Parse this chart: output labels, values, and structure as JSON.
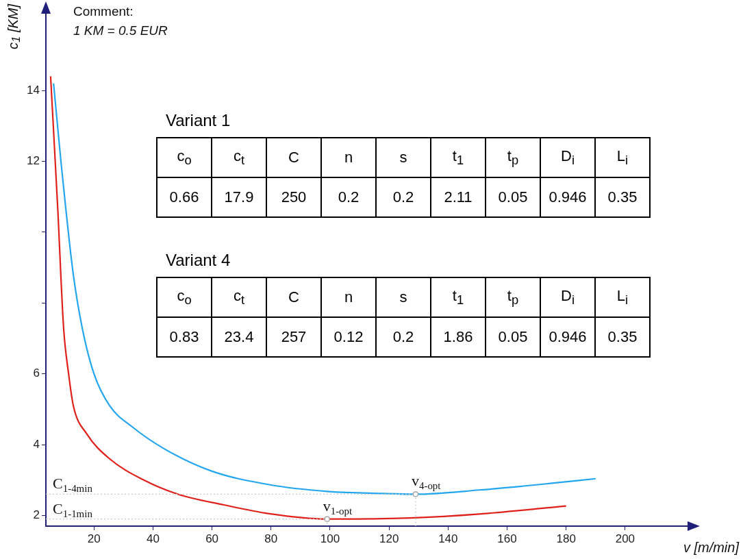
{
  "chart_data": [
    {
      "type": "line",
      "xlabel": "v [m/min]",
      "ylabel": "c$_{1}$ [KM]",
      "annotations": [
        "Comment:",
        "1 KM = 0.5 EUR",
        {
          "text": "v$_{4-opt}$",
          "x": 129,
          "y": 2.6
        },
        {
          "text": "v$_{1-opt}$",
          "x": 99,
          "y": 1.9
        }
      ],
      "series": [
        {
          "color": "#22a6f0",
          "x": [
            6.3,
            8.8,
            10.4,
            13,
            16,
            20,
            25.3,
            33,
            44.5,
            60,
            79.4,
            99,
            118,
            129,
            150.6,
            174,
            190
          ],
          "values": [
            14.2,
            12,
            10.7,
            8.8,
            7.3,
            6.0,
            5.1,
            4.5,
            3.85,
            3.25,
            2.87,
            2.68,
            2.62,
            2.6,
            2.72,
            2.9,
            3.04
          ]
        },
        {
          "color": "#e0201b",
          "x": [
            5.3,
            7.7,
            9.7,
            11.4,
            13,
            17.6,
            25.3,
            36.9,
            48.5,
            64,
            79.4,
            99,
            127,
            150.6,
            180
          ],
          "values": [
            14.4,
            10.7,
            7.3,
            6.0,
            5.1,
            4.3,
            3.6,
            3.0,
            2.6,
            2.3,
            2.05,
            1.9,
            1.93,
            2.04,
            2.27
          ]
        }
      ],
      "ref_lines": [
        {
          "axis": "y",
          "value": 2.6,
          "label": "C$_{1-4min}$",
          "line_style": "dotted",
          "color": "#c8c8c8"
        },
        {
          "axis": "y",
          "value": 1.9,
          "label": "C$_{1-1min}$",
          "line_style": "dotted",
          "color": "#c8c8c8"
        }
      ],
      "xlim": [
        3.7,
        223
      ],
      "xticks": [
        20,
        40,
        60,
        80,
        100,
        120,
        140,
        160,
        180,
        200
      ],
      "ylim": [
        1.7,
        16.3
      ],
      "yticks": [
        2,
        4,
        6,
        {
          "value": 8,
          "label": null
        },
        {
          "value": 10,
          "label": null
        },
        12,
        14
      ],
      "legend": false,
      "marker": "none",
      "line_style": "solid"
    },
    {
      "type": "other",
      "title": "Variant 1",
      "categories": [
        "c$_{o}$",
        "c$_{t}$",
        "C",
        "n",
        "s",
        "t$_{1}$",
        "t$_{p}$",
        "D$_{i}$",
        "L$_{i}$"
      ],
      "values": [
        0.66,
        17.9,
        250,
        0.2,
        0.2,
        2.11,
        0.05,
        0.946,
        0.35
      ],
      "data_labels": true
    },
    {
      "type": "other",
      "title": "Variant 4",
      "categories": [
        "c$_{o}$",
        "c$_{t}$",
        "C",
        "n",
        "s",
        "t$_{1}$",
        "t$_{p}$",
        "D$_{i}$",
        "L$_{i}$"
      ],
      "values": [
        0.83,
        23.4,
        257,
        0.12,
        0.2,
        1.86,
        0.05,
        0.946,
        0.35
      ],
      "data_labels": true
    }
  ]
}
